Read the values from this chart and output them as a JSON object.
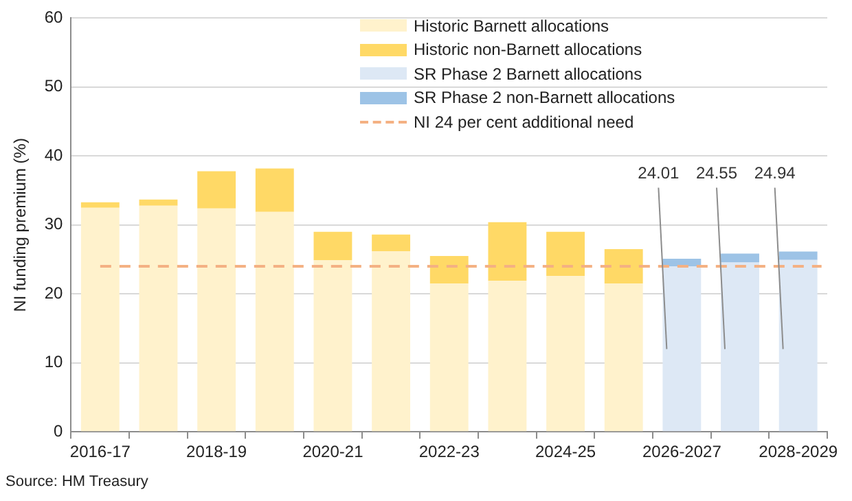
{
  "chart_data": {
    "type": "bar",
    "stacked": true,
    "ylabel": "NI funding premium (%)",
    "categories": [
      "2016-17",
      null,
      "2018-19",
      null,
      "2020-21",
      null,
      "2022-23",
      null,
      "2024-25",
      null,
      "2026-2027",
      null,
      "2028-2029"
    ],
    "series": [
      {
        "name": "Historic Barnett allocations",
        "color": "#fff2cc",
        "values": [
          32.5,
          32.8,
          32.4,
          31.9,
          24.9,
          26.2,
          21.5,
          21.9,
          22.6,
          21.5,
          null,
          null,
          null
        ]
      },
      {
        "name": "Historic non-Barnett allocations",
        "color": "#ffd966",
        "values": [
          0.8,
          0.9,
          5.4,
          6.3,
          4.1,
          2.4,
          4.0,
          8.5,
          6.4,
          5.0,
          null,
          null,
          null
        ]
      },
      {
        "name": "SR Phase 2 Barnett allocations",
        "color": "#dde8f5",
        "values": [
          null,
          null,
          null,
          null,
          null,
          null,
          null,
          null,
          null,
          null,
          24.01,
          24.55,
          24.94
        ],
        "value_labels": [
          null,
          null,
          null,
          null,
          null,
          null,
          null,
          null,
          null,
          null,
          "24.01",
          "24.55",
          "24.94"
        ]
      },
      {
        "name": "SR Phase 2 non-Barnett allocations",
        "color": "#9dc3e6",
        "values": [
          null,
          null,
          null,
          null,
          null,
          null,
          null,
          null,
          null,
          null,
          1.1,
          1.3,
          1.2
        ]
      }
    ],
    "ref_lines": [
      {
        "axis": "y",
        "value": 24,
        "label": "NI 24 per cent additional need",
        "color": "#f4b183",
        "line_style": "dashed"
      }
    ],
    "ylim": [
      0,
      60
    ],
    "yticks": [
      0,
      10,
      20,
      30,
      40,
      50,
      60
    ],
    "grid": "y",
    "legend": "top right",
    "annotations": [
      "Source: HM Treasury"
    ]
  }
}
